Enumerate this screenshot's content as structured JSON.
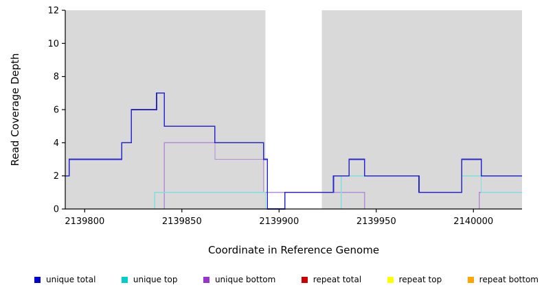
{
  "figure": {
    "xlabel": "Coordinate in Reference Genome",
    "ylabel": "Read Coverage Depth"
  },
  "legend": {
    "items": [
      {
        "label": "unique total",
        "color": "#0000cd"
      },
      {
        "label": "unique top",
        "color": "#00cdcd"
      },
      {
        "label": "unique bottom",
        "color": "#9933cc"
      },
      {
        "label": "repeat total",
        "color": "#cd0000"
      },
      {
        "label": "repeat top",
        "color": "#ffff00"
      },
      {
        "label": "repeat bottom",
        "color": "#ffa500"
      }
    ]
  },
  "chart_data": {
    "type": "line",
    "subtype": "step",
    "title": "",
    "xlabel": "Coordinate in Reference Genome",
    "ylabel": "Read Coverage Depth",
    "xlim": [
      2139790,
      2140025
    ],
    "ylim": [
      0,
      12
    ],
    "xticks": [
      2139800,
      2139850,
      2139900,
      2139950,
      2140000
    ],
    "yticks": [
      0,
      2,
      4,
      6,
      8,
      10,
      12
    ],
    "grid": false,
    "legend_position": "bottom",
    "plot_bg": "#d9d9d9",
    "highlight_band": {
      "x0": 2139893,
      "x1": 2139922,
      "color": "#ffffff"
    },
    "series": [
      {
        "name": "unique total",
        "color": "#2828cc",
        "width": 1.6,
        "points": [
          [
            2139790,
            2
          ],
          [
            2139792,
            3
          ],
          [
            2139819,
            4
          ],
          [
            2139824,
            6
          ],
          [
            2139837,
            7
          ],
          [
            2139841,
            5
          ],
          [
            2139867,
            4
          ],
          [
            2139892,
            3
          ],
          [
            2139894,
            0
          ],
          [
            2139903,
            1
          ],
          [
            2139928,
            2
          ],
          [
            2139936,
            3
          ],
          [
            2139944,
            2
          ],
          [
            2139972,
            1
          ],
          [
            2139994,
            3
          ],
          [
            2140004,
            2
          ]
        ]
      },
      {
        "name": "unique top",
        "color": "#7fdfdf",
        "width": 1.2,
        "points": [
          [
            2139790,
            0
          ],
          [
            2139836,
            1
          ],
          [
            2139893,
            0
          ],
          [
            2139932,
            2
          ],
          [
            2139972,
            1
          ],
          [
            2139994,
            2
          ],
          [
            2140004,
            1
          ]
        ]
      },
      {
        "name": "unique bottom",
        "color": "#b48cd8",
        "width": 1.2,
        "points": [
          [
            2139790,
            0
          ],
          [
            2139841,
            4
          ],
          [
            2139867,
            3
          ],
          [
            2139892,
            1
          ],
          [
            2139944,
            0
          ],
          [
            2140003,
            1
          ]
        ]
      },
      {
        "name": "repeat total",
        "color": "#cd0000",
        "width": 1.2,
        "points": [
          [
            2139790,
            0
          ]
        ]
      },
      {
        "name": "repeat top",
        "color": "#ffff00",
        "width": 1.2,
        "points": [
          [
            2139790,
            0
          ]
        ]
      },
      {
        "name": "repeat bottom",
        "color": "#ffa500",
        "width": 1.2,
        "points": [
          [
            2139790,
            0
          ]
        ]
      }
    ]
  }
}
